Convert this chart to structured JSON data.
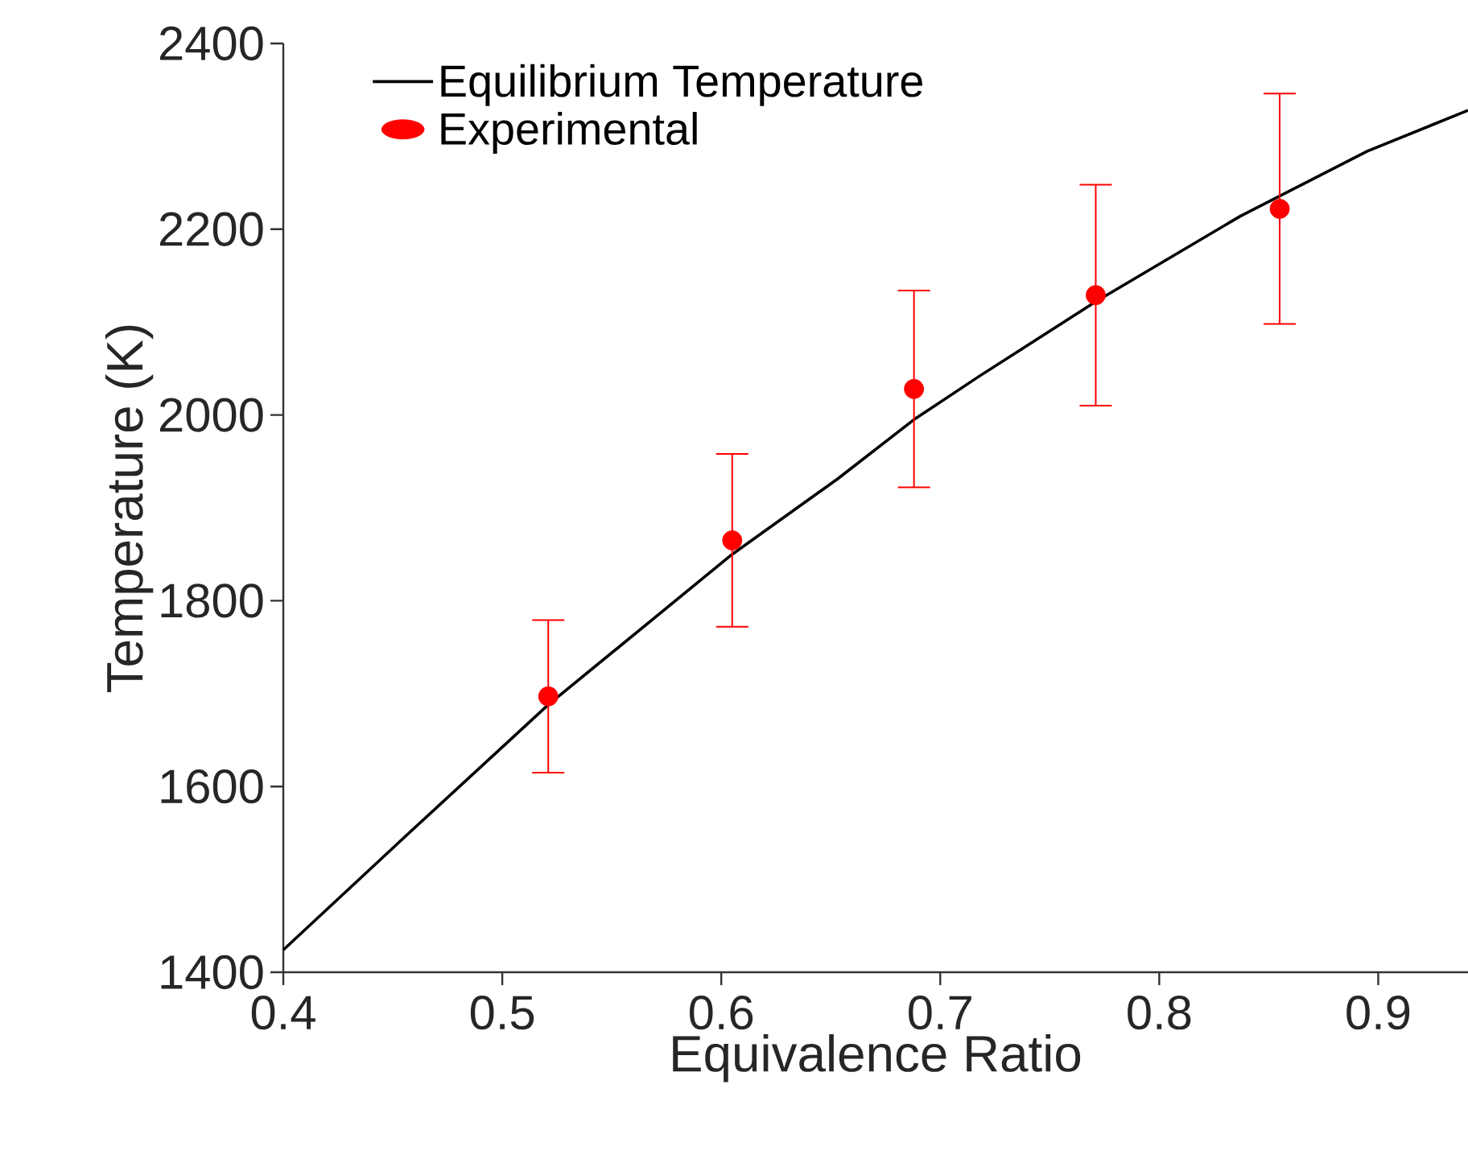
{
  "chart_data": {
    "type": "line",
    "xlabel": "Equivalence Ratio",
    "ylabel": "Temperature (K)",
    "xlim": [
      0.4,
      0.941
    ],
    "ylim": [
      1400,
      2400
    ],
    "xticks": [
      0.4,
      0.5,
      0.6,
      0.7,
      0.8,
      0.9
    ],
    "yticks": [
      1400,
      1600,
      1800,
      2000,
      2200,
      2400
    ],
    "grid": false,
    "legend": "top left",
    "series": [
      {
        "name": "Equilibrium Temperature",
        "color": "#000000",
        "line_style": "solid",
        "x": [
          0.4,
          0.457,
          0.521,
          0.605,
          0.653,
          0.688,
          0.718,
          0.771,
          0.837,
          0.895,
          0.941
        ],
        "values": [
          1424,
          1549,
          1688,
          1850,
          1931,
          1995,
          2042,
          2122,
          2214,
          2284,
          2328
        ]
      },
      {
        "name": "Experimental",
        "type": "scatter",
        "color": "#ff0000",
        "marker": "circle",
        "x": [
          0.521,
          0.605,
          0.688,
          0.771,
          0.855
        ],
        "values": [
          1697,
          1865,
          2028,
          2129,
          2222
        ],
        "errors": [
          82,
          93,
          106,
          119,
          124
        ]
      }
    ]
  }
}
